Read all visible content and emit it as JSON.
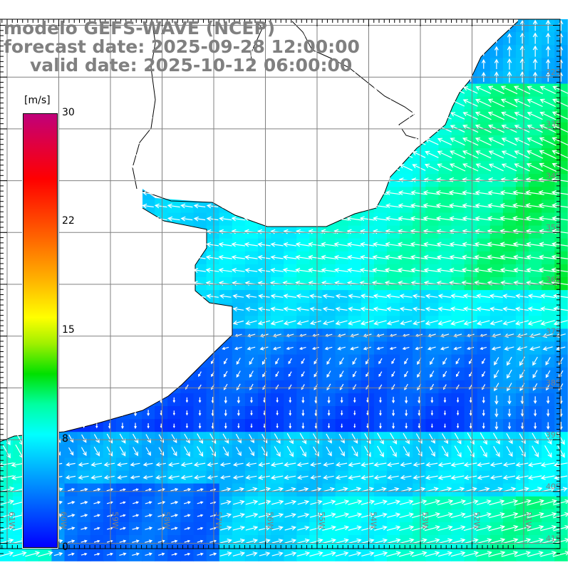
{
  "titles": {
    "model": "modelo GEFS-WAVE (NCEP)",
    "forecast_date": "forecast date: 2025-09-28 12:00:00",
    "valid_date": "valid date: 2025-10-12 06:00:00"
  },
  "colorbar": {
    "unit": "[m/s]",
    "ticks": [
      "30",
      "22",
      "15",
      "8",
      "0"
    ],
    "tick_values": [
      30,
      22,
      15,
      8,
      0
    ]
  },
  "map": {
    "variable": "wind speed and direction",
    "lat_labels": [
      "32S",
      "33S",
      "34S",
      "35S",
      "36S",
      "37S",
      "38S",
      "39S",
      "40S",
      "41S"
    ],
    "lon_labels": [
      "61W",
      "60W",
      "59W",
      "58W",
      "57W",
      "56W",
      "55W",
      "54W",
      "53W",
      "52W",
      "51W"
    ],
    "colors": {
      "land": "#ffffff",
      "coast": "#000000",
      "grid": "#808080",
      "arrow": "#ffffff"
    }
  }
}
